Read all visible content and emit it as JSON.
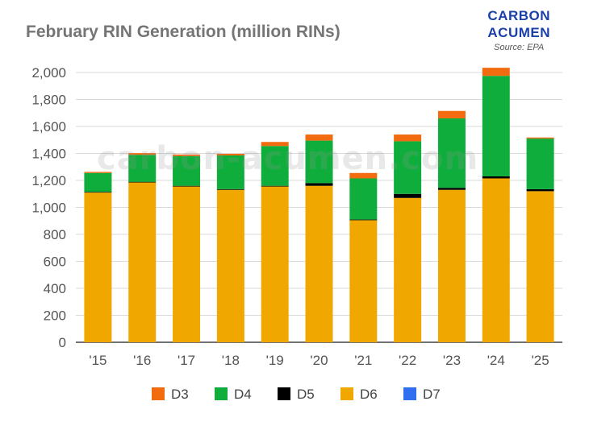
{
  "header": {
    "title": "February RIN Generation (million RINs)",
    "logo_line1": "CARBON",
    "logo_line2": "ACUMEN",
    "source": "Source: EPA"
  },
  "watermark": "carbon-acumen.com",
  "chart_data": {
    "type": "bar",
    "stacked": true,
    "title": "February RIN Generation (million RINs)",
    "xlabel": "",
    "ylabel": "",
    "ylim": [
      0,
      2000
    ],
    "yticks": [
      0,
      200,
      400,
      600,
      800,
      1000,
      1200,
      1400,
      1600,
      1800,
      2000
    ],
    "ytick_labels": [
      "0",
      "200",
      "400",
      "600",
      "800",
      "1,000",
      "1,200",
      "1,400",
      "1,600",
      "1,800",
      "2,000"
    ],
    "grid": true,
    "legend_position": "bottom",
    "categories": [
      "'15",
      "'16",
      "'17",
      "'18",
      "'19",
      "'20",
      "'21",
      "'22",
      "'23",
      "'24",
      "'25"
    ],
    "series": [
      {
        "name": "D6",
        "color": "#f0a800",
        "values": [
          1110,
          1185,
          1155,
          1130,
          1155,
          1160,
          905,
          1070,
          1130,
          1215,
          1120
        ]
      },
      {
        "name": "D5",
        "color": "#000000",
        "values": [
          5,
          5,
          5,
          5,
          5,
          20,
          5,
          30,
          15,
          15,
          15
        ]
      },
      {
        "name": "D4",
        "color": "#0fae3c",
        "values": [
          140,
          200,
          220,
          250,
          295,
          315,
          305,
          390,
          515,
          745,
          375
        ]
      },
      {
        "name": "D3",
        "color": "#f26b0f",
        "values": [
          8,
          12,
          12,
          12,
          30,
          45,
          40,
          50,
          55,
          60,
          8
        ]
      },
      {
        "name": "D7",
        "color": "#2f6ff0",
        "values": [
          0,
          0,
          0,
          0,
          0,
          0,
          0,
          0,
          0,
          0,
          0
        ]
      }
    ],
    "legend_order": [
      "D3",
      "D4",
      "D5",
      "D6",
      "D7"
    ]
  }
}
